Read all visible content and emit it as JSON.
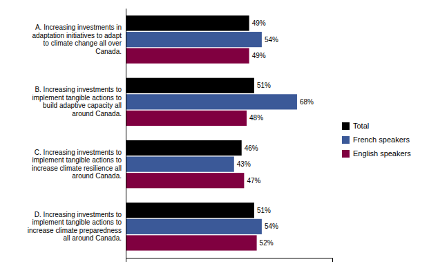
{
  "chart_data": {
    "type": "bar",
    "orientation": "horizontal",
    "categories": [
      "A. Increasing investments in\nadaptation initiatives to adapt\nto climate change all over\nCanada.",
      "B. Increasing investments to\nimplement tangible actions to\nbuild adaptive capacity all\naround Canada.",
      "C. Increasing investments to\nimplement tangible actions to\nincrease climate resilience all\naround Canada.",
      "D. Increasing investments to\nimplement tangible actions to\nincrease climate preparedness\nall around Canada."
    ],
    "series": [
      {
        "name": "Total",
        "color": "#000000",
        "values": [
          49,
          51,
          46,
          51
        ],
        "value_labels": [
          "49%",
          "51%",
          "46%",
          "51%"
        ]
      },
      {
        "name": "French speakers",
        "color": "#3b5998",
        "values": [
          54,
          68,
          43,
          54
        ],
        "value_labels": [
          "54%",
          "68%",
          "43%",
          "54%"
        ]
      },
      {
        "name": "English speakers",
        "color": "#800040",
        "values": [
          49,
          48,
          47,
          52
        ],
        "value_labels": [
          "49%",
          "48%",
          "47%",
          "52%"
        ]
      }
    ],
    "xlim": [
      0,
      82
    ],
    "xticks": [],
    "tick_labels": "y",
    "data_labels": true,
    "legend": "right"
  }
}
